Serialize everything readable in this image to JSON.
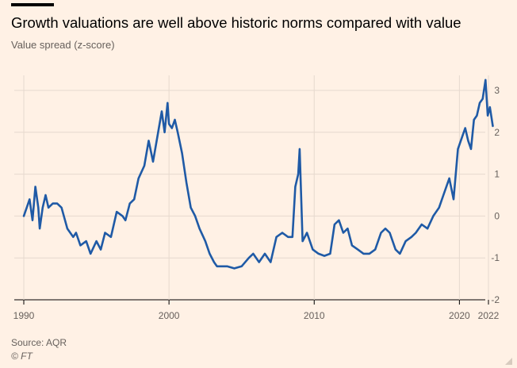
{
  "header": {
    "title": "Growth valuations are well above historic norms compared with value",
    "subtitle": "Value spread (z-score)"
  },
  "footer": {
    "source": "Source: AQR",
    "copyright": "© FT"
  },
  "colors": {
    "background": "#fff1e5",
    "line": "#1f5aa6",
    "grid": "#e6d9ce",
    "axis": "#66605c"
  },
  "chart_data": {
    "type": "line",
    "title": "Growth valuations are well above historic norms compared with value",
    "ylabel": "Value spread (z-score)",
    "xlabel": "",
    "x_ticks": [
      "1990",
      "2000",
      "2010",
      "2020",
      "2022"
    ],
    "x_tick_values": [
      1990,
      2000,
      2010,
      2020,
      2022
    ],
    "y_ticks": [
      "3",
      "2",
      "1",
      "0",
      "-1",
      "-2"
    ],
    "y_tick_values": [
      3,
      2,
      1,
      0,
      -1,
      -2
    ],
    "xlim": [
      1990,
      2023
    ],
    "ylim": [
      -2,
      3.3
    ],
    "grid": true,
    "y_axis_side": "right",
    "series": [
      {
        "name": "",
        "x": [
          1990.0,
          1990.2,
          1990.4,
          1990.6,
          1990.8,
          1991.0,
          1991.1,
          1991.3,
          1991.5,
          1991.7,
          1992.0,
          1992.3,
          1992.6,
          1993.0,
          1993.4,
          1993.6,
          1993.9,
          1994.3,
          1994.6,
          1995.0,
          1995.3,
          1995.6,
          1996.0,
          1996.4,
          1996.8,
          1997.0,
          1997.3,
          1997.6,
          1997.9,
          1998.3,
          1998.6,
          1998.9,
          1999.2,
          1999.5,
          1999.7,
          1999.9,
          2000.0,
          2000.2,
          2000.4,
          2000.6,
          2000.9,
          2001.2,
          2001.5,
          2001.8,
          2002.1,
          2002.5,
          2002.8,
          2003.1,
          2003.3,
          2003.6,
          2004.0,
          2004.5,
          2005.0,
          2005.5,
          2005.8,
          2006.2,
          2006.6,
          2007.0,
          2007.4,
          2007.8,
          2008.2,
          2008.5,
          2008.7,
          2008.9,
          2009.0,
          2009.2,
          2009.5,
          2009.9,
          2010.3,
          2010.7,
          2011.1,
          2011.4,
          2011.7,
          2012.0,
          2012.3,
          2012.6,
          2013.0,
          2013.4,
          2013.8,
          2014.2,
          2014.6,
          2014.9,
          2015.2,
          2015.6,
          2015.9,
          2016.3,
          2016.7,
          2017.0,
          2017.4,
          2017.8,
          2018.2,
          2018.6,
          2018.9,
          2019.3,
          2019.6,
          2019.9,
          2020.2,
          2020.4,
          2020.6,
          2020.8,
          2021.0,
          2021.2,
          2021.4,
          2021.6,
          2021.8,
          2021.95,
          2022.1,
          2022.3
        ],
        "values": [
          0.0,
          0.2,
          0.4,
          -0.1,
          0.7,
          0.2,
          -0.3,
          0.2,
          0.5,
          0.2,
          0.3,
          0.3,
          0.2,
          -0.3,
          -0.5,
          -0.4,
          -0.7,
          -0.6,
          -0.9,
          -0.6,
          -0.8,
          -0.4,
          -0.5,
          0.1,
          0.0,
          -0.1,
          0.3,
          0.4,
          0.9,
          1.2,
          1.8,
          1.3,
          1.9,
          2.5,
          2.0,
          2.7,
          2.2,
          2.1,
          2.3,
          2.0,
          1.5,
          0.8,
          0.2,
          0.0,
          -0.3,
          -0.6,
          -0.9,
          -1.1,
          -1.2,
          -1.2,
          -1.2,
          -1.25,
          -1.2,
          -1.0,
          -0.9,
          -1.1,
          -0.9,
          -1.1,
          -0.5,
          -0.4,
          -0.5,
          -0.5,
          0.7,
          1.0,
          1.6,
          -0.6,
          -0.4,
          -0.8,
          -0.9,
          -0.95,
          -0.9,
          -0.2,
          -0.1,
          -0.4,
          -0.3,
          -0.7,
          -0.8,
          -0.9,
          -0.9,
          -0.8,
          -0.4,
          -0.3,
          -0.4,
          -0.8,
          -0.9,
          -0.6,
          -0.5,
          -0.4,
          -0.2,
          -0.3,
          0.0,
          0.2,
          0.5,
          0.9,
          0.4,
          1.6,
          1.9,
          2.1,
          1.8,
          1.6,
          2.3,
          2.4,
          2.7,
          2.8,
          3.25,
          2.4,
          2.6,
          2.15
        ]
      }
    ]
  }
}
